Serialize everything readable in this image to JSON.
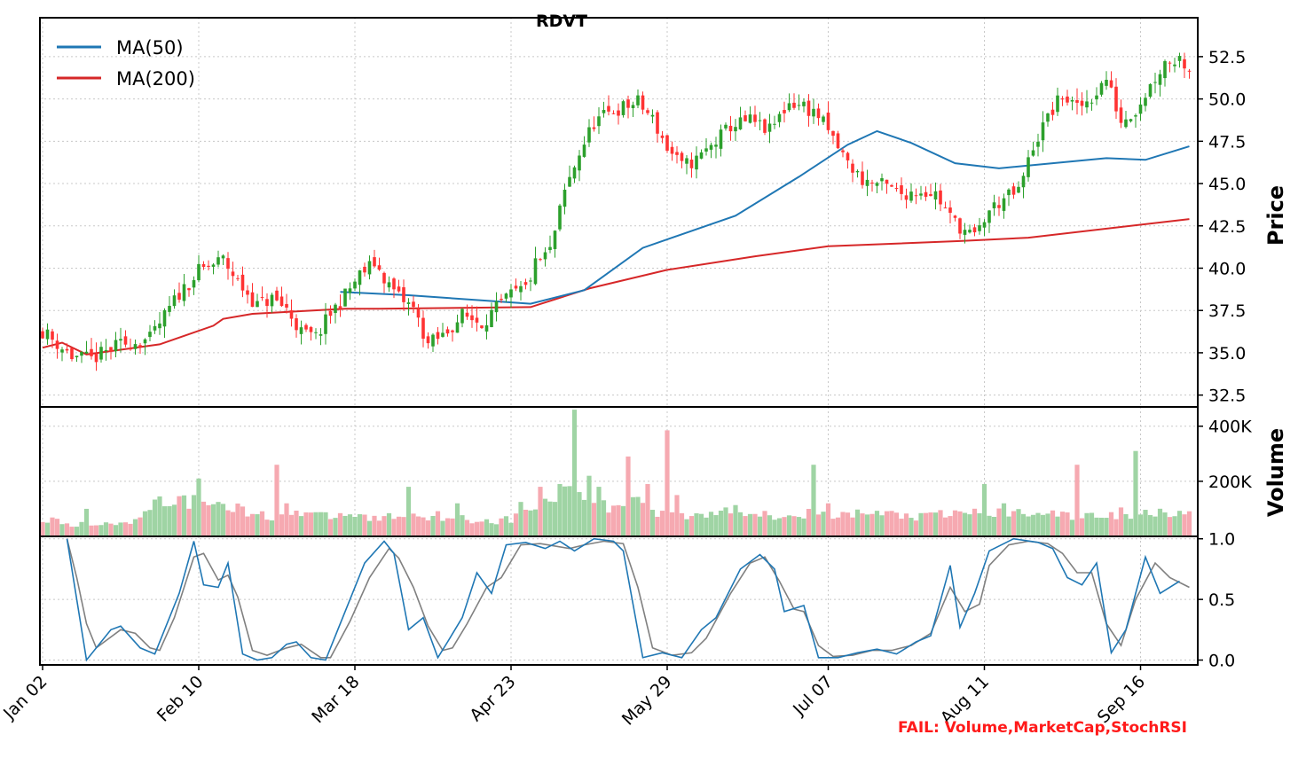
{
  "chart_data": [
    {
      "type": "candlestick",
      "title": "RDVT",
      "ylabel": "Price",
      "ylim": [
        31.8,
        54.8
      ],
      "yticks": [
        "32.5",
        "35.0",
        "37.5",
        "40.0",
        "42.5",
        "45.0",
        "47.5",
        "50.0",
        "52.5"
      ],
      "xticks": [
        "Jan 02",
        "Feb 10",
        "Mar 18",
        "Apr 23",
        "May 29",
        "Jul 07",
        "Aug 11",
        "Sep 16"
      ],
      "legend": {
        "position": "top-left",
        "items": [
          {
            "name": "MA(50)",
            "color": "#1f77b4"
          },
          {
            "name": "MA(200)",
            "color": "#d62728"
          }
        ]
      },
      "colors": {
        "up": "#2ca02c",
        "down": "#ff3333"
      },
      "anchors": [
        [
          0,
          36.3
        ],
        [
          6,
          34.8
        ],
        [
          10,
          34.6
        ],
        [
          16,
          35.5
        ],
        [
          22,
          35.8
        ],
        [
          28,
          38.5
        ],
        [
          32,
          39.8
        ],
        [
          37,
          40.5
        ],
        [
          40,
          39.2
        ],
        [
          44,
          37.8
        ],
        [
          47,
          38.2
        ],
        [
          50,
          37.6
        ],
        [
          53,
          36.2
        ],
        [
          56,
          35.9
        ],
        [
          59,
          37.3
        ],
        [
          62,
          38.4
        ],
        [
          65,
          39.6
        ],
        [
          68,
          40.3
        ],
        [
          71,
          39.0
        ],
        [
          73,
          38.3
        ],
        [
          76,
          37.6
        ],
        [
          79,
          35.5
        ],
        [
          82,
          36.0
        ],
        [
          86,
          37.2
        ],
        [
          90,
          36.8
        ],
        [
          93,
          37.6
        ],
        [
          96,
          38.4
        ],
        [
          99,
          38.8
        ],
        [
          101,
          40.2
        ],
        [
          104,
          41.0
        ],
        [
          107,
          44.5
        ],
        [
          110,
          46.8
        ],
        [
          113,
          48.6
        ],
        [
          117,
          49.3
        ],
        [
          122,
          49.8
        ],
        [
          125,
          48.8
        ],
        [
          128,
          47.1
        ],
        [
          131,
          46.0
        ],
        [
          134,
          46.4
        ],
        [
          137,
          47.2
        ],
        [
          141,
          48.4
        ],
        [
          145,
          48.7
        ],
        [
          149,
          48.1
        ],
        [
          153,
          49.8
        ],
        [
          156,
          49.6
        ],
        [
          159,
          49.0
        ],
        [
          162,
          47.6
        ],
        [
          165,
          46.2
        ],
        [
          168,
          45.2
        ],
        [
          172,
          44.9
        ],
        [
          176,
          44.4
        ],
        [
          180,
          44.6
        ],
        [
          183,
          44.4
        ],
        [
          186,
          43.0
        ],
        [
          189,
          42.2
        ],
        [
          191,
          41.8
        ],
        [
          194,
          43.4
        ],
        [
          197,
          44.1
        ],
        [
          200,
          44.5
        ],
        [
          203,
          47.2
        ],
        [
          206,
          48.9
        ],
        [
          209,
          50.2
        ],
        [
          212,
          49.4
        ],
        [
          215,
          50.1
        ],
        [
          218,
          51.2
        ],
        [
          221,
          48.7
        ],
        [
          224,
          49.4
        ],
        [
          227,
          50.8
        ],
        [
          230,
          52.2
        ],
        [
          233,
          52.4
        ],
        [
          235,
          51.9
        ]
      ],
      "ma50": [
        [
          61,
          38.6
        ],
        [
          75,
          38.4
        ],
        [
          100,
          37.9
        ],
        [
          111,
          38.7
        ],
        [
          123,
          41.2
        ],
        [
          142,
          43.1
        ],
        [
          155,
          45.4
        ],
        [
          165,
          47.3
        ],
        [
          171,
          48.1
        ],
        [
          178,
          47.4
        ],
        [
          187,
          46.2
        ],
        [
          196,
          45.9
        ],
        [
          207,
          46.2
        ],
        [
          218,
          46.5
        ],
        [
          226,
          46.4
        ],
        [
          235,
          47.2
        ]
      ],
      "ma200": [
        [
          0,
          35.3
        ],
        [
          4,
          35.6
        ],
        [
          9,
          34.9
        ],
        [
          24,
          35.5
        ],
        [
          35,
          36.6
        ],
        [
          37,
          37.0
        ],
        [
          43,
          37.3
        ],
        [
          62,
          37.6
        ],
        [
          69,
          37.6
        ],
        [
          100,
          37.7
        ],
        [
          112,
          38.8
        ],
        [
          128,
          39.9
        ],
        [
          146,
          40.7
        ],
        [
          161,
          41.3
        ],
        [
          188,
          41.6
        ],
        [
          202,
          41.8
        ],
        [
          235,
          42.9
        ]
      ]
    },
    {
      "type": "bar",
      "ylabel": "Volume",
      "ylim": [
        0,
        470000
      ],
      "yticks": [
        "200K",
        "400K"
      ],
      "colors": {
        "up": "#9fd4a4",
        "down": "#f6a9b1"
      },
      "anchors": [
        [
          0,
          60000
        ],
        [
          6,
          45000
        ],
        [
          12,
          40000
        ],
        [
          18,
          55000
        ],
        [
          22,
          110000
        ],
        [
          27,
          140000
        ],
        [
          32,
          120000
        ],
        [
          36,
          145000
        ],
        [
          42,
          80000
        ],
        [
          47,
          75000
        ],
        [
          52,
          90000
        ],
        [
          58,
          70000
        ],
        [
          62,
          80000
        ],
        [
          68,
          65000
        ],
        [
          75,
          80000
        ],
        [
          82,
          75000
        ],
        [
          88,
          60000
        ],
        [
          94,
          55000
        ],
        [
          99,
          80000
        ],
        [
          103,
          130000
        ],
        [
          108,
          160000
        ],
        [
          112,
          150000
        ],
        [
          116,
          90000
        ],
        [
          121,
          150000
        ],
        [
          126,
          90000
        ],
        [
          132,
          80000
        ],
        [
          138,
          90000
        ],
        [
          144,
          95000
        ],
        [
          150,
          80000
        ],
        [
          155,
          85000
        ],
        [
          162,
          70000
        ],
        [
          168,
          85000
        ],
        [
          174,
          80000
        ],
        [
          180,
          70000
        ],
        [
          186,
          80000
        ],
        [
          192,
          90000
        ],
        [
          198,
          80000
        ],
        [
          204,
          95000
        ],
        [
          210,
          70000
        ],
        [
          216,
          80000
        ],
        [
          222,
          70000
        ],
        [
          226,
          90000
        ],
        [
          230,
          95000
        ],
        [
          235,
          80000
        ]
      ],
      "spikes": [
        [
          9,
          100000
        ],
        [
          24,
          145000
        ],
        [
          32,
          210000
        ],
        [
          36,
          125000
        ],
        [
          48,
          260000
        ],
        [
          50,
          120000
        ],
        [
          75,
          180000
        ],
        [
          85,
          120000
        ],
        [
          98,
          125000
        ],
        [
          102,
          180000
        ],
        [
          106,
          190000
        ],
        [
          109,
          460000
        ],
        [
          112,
          220000
        ],
        [
          114,
          180000
        ],
        [
          120,
          290000
        ],
        [
          124,
          190000
        ],
        [
          128,
          385000
        ],
        [
          130,
          150000
        ],
        [
          158,
          260000
        ],
        [
          161,
          120000
        ],
        [
          193,
          190000
        ],
        [
          197,
          120000
        ],
        [
          212,
          260000
        ],
        [
          221,
          105000
        ],
        [
          224,
          310000
        ]
      ]
    },
    {
      "type": "line",
      "ylabel": "",
      "ylim": [
        -0.04,
        1.02
      ],
      "yticks": [
        "0.0",
        "0.5",
        "1.0"
      ],
      "series": [
        {
          "name": "",
          "color": "#1f77b4",
          "anchors": [
            [
              5,
              1.0
            ],
            [
              7,
              0.5
            ],
            [
              9,
              0.0
            ],
            [
              14,
              0.25
            ],
            [
              16,
              0.28
            ],
            [
              20,
              0.1
            ],
            [
              23,
              0.05
            ],
            [
              28,
              0.55
            ],
            [
              31,
              0.98
            ],
            [
              33,
              0.62
            ],
            [
              36,
              0.6
            ],
            [
              38,
              0.8
            ],
            [
              41,
              0.05
            ],
            [
              44,
              0.0
            ],
            [
              47,
              0.02
            ],
            [
              50,
              0.13
            ],
            [
              52,
              0.15
            ],
            [
              55,
              0.02
            ],
            [
              58,
              0.0
            ],
            [
              62,
              0.4
            ],
            [
              66,
              0.8
            ],
            [
              70,
              0.98
            ],
            [
              72,
              0.88
            ],
            [
              75,
              0.25
            ],
            [
              78,
              0.35
            ],
            [
              81,
              0.02
            ],
            [
              83,
              0.15
            ],
            [
              86,
              0.35
            ],
            [
              89,
              0.72
            ],
            [
              92,
              0.55
            ],
            [
              95,
              0.95
            ],
            [
              99,
              0.97
            ],
            [
              103,
              0.92
            ],
            [
              106,
              0.98
            ],
            [
              109,
              0.9
            ],
            [
              113,
              1.0
            ],
            [
              117,
              0.98
            ],
            [
              119,
              0.9
            ],
            [
              123,
              0.02
            ],
            [
              127,
              0.06
            ],
            [
              131,
              0.02
            ],
            [
              135,
              0.25
            ],
            [
              138,
              0.35
            ],
            [
              143,
              0.75
            ],
            [
              147,
              0.87
            ],
            [
              150,
              0.75
            ],
            [
              152,
              0.4
            ],
            [
              156,
              0.45
            ],
            [
              159,
              0.02
            ],
            [
              163,
              0.02
            ],
            [
              167,
              0.06
            ],
            [
              171,
              0.09
            ],
            [
              175,
              0.05
            ],
            [
              179,
              0.15
            ],
            [
              182,
              0.2
            ],
            [
              186,
              0.78
            ],
            [
              188,
              0.27
            ],
            [
              191,
              0.55
            ],
            [
              194,
              0.9
            ],
            [
              199,
              1.0
            ],
            [
              204,
              0.97
            ],
            [
              207,
              0.92
            ],
            [
              210,
              0.68
            ],
            [
              213,
              0.62
            ],
            [
              216,
              0.8
            ],
            [
              219,
              0.06
            ],
            [
              222,
              0.25
            ],
            [
              226,
              0.85
            ],
            [
              229,
              0.55
            ],
            [
              233,
              0.65
            ]
          ]
        },
        {
          "name": "",
          "color": "#808080",
          "anchors": [
            [
              5,
              1.0
            ],
            [
              7,
              0.68
            ],
            [
              9,
              0.3
            ],
            [
              11,
              0.1
            ],
            [
              16,
              0.25
            ],
            [
              19,
              0.22
            ],
            [
              22,
              0.1
            ],
            [
              24,
              0.08
            ],
            [
              27,
              0.35
            ],
            [
              31,
              0.85
            ],
            [
              33,
              0.88
            ],
            [
              36,
              0.66
            ],
            [
              38,
              0.7
            ],
            [
              40,
              0.52
            ],
            [
              43,
              0.08
            ],
            [
              46,
              0.04
            ],
            [
              50,
              0.1
            ],
            [
              53,
              0.13
            ],
            [
              57,
              0.02
            ],
            [
              59,
              0.02
            ],
            [
              63,
              0.32
            ],
            [
              67,
              0.68
            ],
            [
              71,
              0.92
            ],
            [
              73,
              0.84
            ],
            [
              76,
              0.6
            ],
            [
              79,
              0.28
            ],
            [
              82,
              0.08
            ],
            [
              84,
              0.1
            ],
            [
              87,
              0.3
            ],
            [
              91,
              0.6
            ],
            [
              94,
              0.68
            ],
            [
              98,
              0.95
            ],
            [
              102,
              0.96
            ],
            [
              105,
              0.94
            ],
            [
              108,
              0.92
            ],
            [
              111,
              0.95
            ],
            [
              115,
              0.98
            ],
            [
              119,
              0.96
            ],
            [
              122,
              0.6
            ],
            [
              125,
              0.1
            ],
            [
              129,
              0.04
            ],
            [
              133,
              0.06
            ],
            [
              136,
              0.18
            ],
            [
              141,
              0.55
            ],
            [
              145,
              0.8
            ],
            [
              148,
              0.85
            ],
            [
              151,
              0.65
            ],
            [
              154,
              0.42
            ],
            [
              156,
              0.4
            ],
            [
              159,
              0.12
            ],
            [
              162,
              0.03
            ],
            [
              166,
              0.04
            ],
            [
              170,
              0.08
            ],
            [
              174,
              0.08
            ],
            [
              178,
              0.12
            ],
            [
              182,
              0.22
            ],
            [
              186,
              0.6
            ],
            [
              189,
              0.4
            ],
            [
              192,
              0.46
            ],
            [
              194,
              0.78
            ],
            [
              198,
              0.95
            ],
            [
              202,
              0.98
            ],
            [
              206,
              0.96
            ],
            [
              209,
              0.88
            ],
            [
              212,
              0.72
            ],
            [
              215,
              0.72
            ],
            [
              218,
              0.3
            ],
            [
              221,
              0.12
            ],
            [
              224,
              0.5
            ],
            [
              228,
              0.8
            ],
            [
              231,
              0.68
            ],
            [
              235,
              0.6
            ]
          ]
        }
      ]
    }
  ],
  "annotation": "FAIL: Volume,MarketCap,StochRSI"
}
